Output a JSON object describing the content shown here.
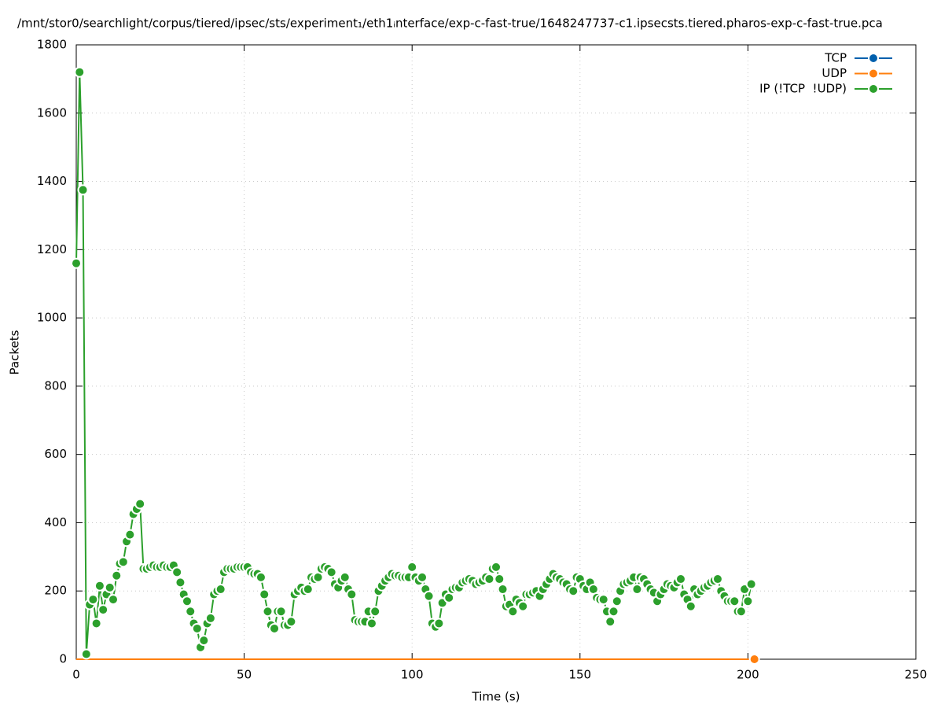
{
  "chart_data": {
    "type": "line",
    "title": "/mnt/stor0/searchlight/corpus/tiered/ipsec/sts/experiment₁/eth1ᵢnterface/exp-c-fast-true/1648247737-c1.ipsecsts.tiered.pharos-exp-c-fast-true.pca",
    "x_label": "Time (s)",
    "y_label": "Packets",
    "xlim": [
      0,
      250
    ],
    "xticks": [
      0,
      50,
      100,
      150,
      200,
      250
    ],
    "ylim": [
      0,
      1800
    ],
    "yticks": [
      0,
      200,
      400,
      600,
      800,
      1000,
      1200,
      1400,
      1600,
      1800
    ],
    "grid": true,
    "legend": "top-right",
    "x": [
      0,
      1,
      2,
      3,
      4,
      5,
      6,
      7,
      8,
      9,
      10,
      11,
      12,
      13,
      14,
      15,
      16,
      17,
      18,
      19,
      20,
      21,
      22,
      23,
      24,
      25,
      26,
      27,
      28,
      29,
      30,
      31,
      32,
      33,
      34,
      35,
      36,
      37,
      38,
      39,
      40,
      41,
      42,
      43,
      44,
      45,
      46,
      47,
      48,
      49,
      50,
      51,
      52,
      53,
      54,
      55,
      56,
      57,
      58,
      59,
      60,
      61,
      62,
      63,
      64,
      65,
      66,
      67,
      68,
      69,
      70,
      71,
      72,
      73,
      74,
      75,
      76,
      77,
      78,
      79,
      80,
      81,
      82,
      83,
      84,
      85,
      86,
      87,
      88,
      89,
      90,
      91,
      92,
      93,
      94,
      95,
      96,
      97,
      98,
      99,
      100,
      101,
      102,
      103,
      104,
      105,
      106,
      107,
      108,
      109,
      110,
      111,
      112,
      113,
      114,
      115,
      116,
      117,
      118,
      119,
      120,
      121,
      122,
      123,
      124,
      125,
      126,
      127,
      128,
      129,
      130,
      131,
      132,
      133,
      134,
      135,
      136,
      137,
      138,
      139,
      140,
      141,
      142,
      143,
      144,
      145,
      146,
      147,
      148,
      149,
      150,
      151,
      152,
      153,
      154,
      155,
      156,
      157,
      158,
      159,
      160,
      161,
      162,
      163,
      164,
      165,
      166,
      167,
      168,
      169,
      170,
      171,
      172,
      173,
      174,
      175,
      176,
      177,
      178,
      179,
      180,
      181,
      182,
      183,
      184,
      185,
      186,
      187,
      188,
      189,
      190,
      191,
      192,
      193,
      194,
      195,
      196,
      197,
      198,
      199,
      200,
      201
    ],
    "series": [
      {
        "name": "TCP",
        "color": "#0060ad",
        "values": [
          0,
          0,
          0,
          0,
          0,
          0,
          0,
          0,
          0,
          0,
          0,
          0,
          0,
          0,
          0,
          0,
          0,
          0,
          0,
          0,
          0,
          0,
          0,
          0,
          0,
          0,
          0,
          0,
          0,
          0,
          0,
          0,
          0,
          0,
          0,
          0,
          0,
          0,
          0,
          0,
          0,
          0,
          0,
          0,
          0,
          0,
          0,
          0,
          0,
          0,
          0,
          0,
          0,
          0,
          0,
          0,
          0,
          0,
          0,
          0,
          0,
          0,
          0,
          0,
          0,
          0,
          0,
          0,
          0,
          0,
          0,
          0,
          0,
          0,
          0,
          0,
          0,
          0,
          0,
          0,
          0,
          0,
          0,
          0,
          0,
          0,
          0,
          0,
          0,
          0,
          0,
          0,
          0,
          0,
          0,
          0,
          0,
          0,
          0,
          0,
          0,
          0,
          0,
          0,
          0,
          0,
          0,
          0,
          0,
          0,
          0,
          0,
          0,
          0,
          0,
          0,
          0,
          0,
          0,
          0,
          0,
          0,
          0,
          0,
          0,
          0,
          0,
          0,
          0,
          0,
          0,
          0,
          0,
          0,
          0,
          0,
          0,
          0,
          0,
          0,
          0,
          0,
          0,
          0,
          0,
          0,
          0,
          0,
          0,
          0,
          0,
          0,
          0,
          0,
          0,
          0,
          0,
          0,
          0,
          0,
          0,
          0,
          0,
          0,
          0,
          0,
          0,
          0,
          0,
          0,
          0,
          0,
          0,
          0,
          0,
          0,
          0,
          0,
          0,
          0,
          0,
          0,
          0,
          0,
          0,
          0,
          0,
          0,
          0,
          0,
          0,
          0,
          0,
          0,
          0,
          0,
          0,
          0,
          0,
          0,
          0,
          0
        ]
      },
      {
        "name": "UDP",
        "color": "#ff7f0e",
        "values": [
          0,
          0,
          0,
          0,
          0,
          0,
          0,
          0,
          0,
          0,
          0,
          0,
          0,
          0,
          0,
          0,
          0,
          0,
          0,
          0,
          0,
          0,
          0,
          0,
          0,
          0,
          0,
          0,
          0,
          0,
          0,
          0,
          0,
          0,
          0,
          0,
          0,
          0,
          0,
          0,
          0,
          0,
          0,
          0,
          0,
          0,
          0,
          0,
          0,
          0,
          0,
          0,
          0,
          0,
          0,
          0,
          0,
          0,
          0,
          0,
          0,
          0,
          0,
          0,
          0,
          0,
          0,
          0,
          0,
          0,
          0,
          0,
          0,
          0,
          0,
          0,
          0,
          0,
          0,
          0,
          0,
          0,
          0,
          0,
          0,
          0,
          0,
          0,
          0,
          0,
          0,
          0,
          0,
          0,
          0,
          0,
          0,
          0,
          0,
          0,
          0,
          0,
          0,
          0,
          0,
          0,
          0,
          0,
          0,
          0,
          0,
          0,
          0,
          0,
          0,
          0,
          0,
          0,
          0,
          0,
          0,
          0,
          0,
          0,
          0,
          0,
          0,
          0,
          0,
          0,
          0,
          0,
          0,
          0,
          0,
          0,
          0,
          0,
          0,
          0,
          0,
          0,
          0,
          0,
          0,
          0,
          0,
          0,
          0,
          0,
          0,
          0,
          0,
          0,
          0,
          0,
          0,
          0,
          0,
          0,
          0,
          0,
          0,
          0,
          0,
          0,
          0,
          0,
          0,
          0,
          0,
          0,
          0,
          0,
          0,
          0,
          0,
          0,
          0,
          0,
          0,
          0,
          0,
          0,
          0,
          0,
          0,
          0,
          0,
          0,
          0,
          0,
          0,
          0,
          0,
          0,
          0,
          0,
          0,
          0,
          0,
          0
        ]
      },
      {
        "name": "IP (!TCP  !UDP)",
        "color": "#2ca02c",
        "values": [
          1160,
          1720,
          1375,
          15,
          160,
          175,
          105,
          215,
          145,
          190,
          210,
          175,
          245,
          280,
          285,
          345,
          365,
          425,
          440,
          455,
          265,
          265,
          270,
          275,
          270,
          270,
          275,
          270,
          270,
          275,
          255,
          225,
          190,
          170,
          140,
          105,
          90,
          35,
          55,
          105,
          120,
          190,
          200,
          205,
          255,
          265,
          265,
          265,
          270,
          270,
          270,
          270,
          255,
          250,
          250,
          240,
          190,
          140,
          100,
          90,
          140,
          140,
          100,
          100,
          110,
          190,
          200,
          210,
          200,
          205,
          240,
          235,
          240,
          265,
          270,
          265,
          255,
          220,
          210,
          230,
          240,
          205,
          190,
          115,
          110,
          110,
          110,
          140,
          105,
          140,
          200,
          215,
          230,
          240,
          250,
          245,
          245,
          240,
          240,
          240,
          270,
          240,
          230,
          240,
          205,
          185,
          105,
          95,
          105,
          165,
          190,
          180,
          205,
          210,
          210,
          225,
          230,
          235,
          230,
          220,
          225,
          230,
          240,
          235,
          265,
          270,
          235,
          205,
          155,
          160,
          140,
          175,
          165,
          155,
          190,
          190,
          195,
          200,
          185,
          205,
          220,
          235,
          250,
          240,
          235,
          225,
          220,
          205,
          200,
          240,
          235,
          215,
          205,
          225,
          205,
          180,
          175,
          175,
          140,
          110,
          140,
          170,
          200,
          220,
          225,
          230,
          240,
          205,
          240,
          235,
          220,
          205,
          195,
          170,
          190,
          205,
          220,
          215,
          210,
          225,
          235,
          190,
          175,
          155,
          205,
          190,
          200,
          210,
          215,
          225,
          230,
          235,
          200,
          185,
          170,
          170,
          170,
          140,
          140,
          205,
          170,
          220
        ]
      }
    ]
  }
}
